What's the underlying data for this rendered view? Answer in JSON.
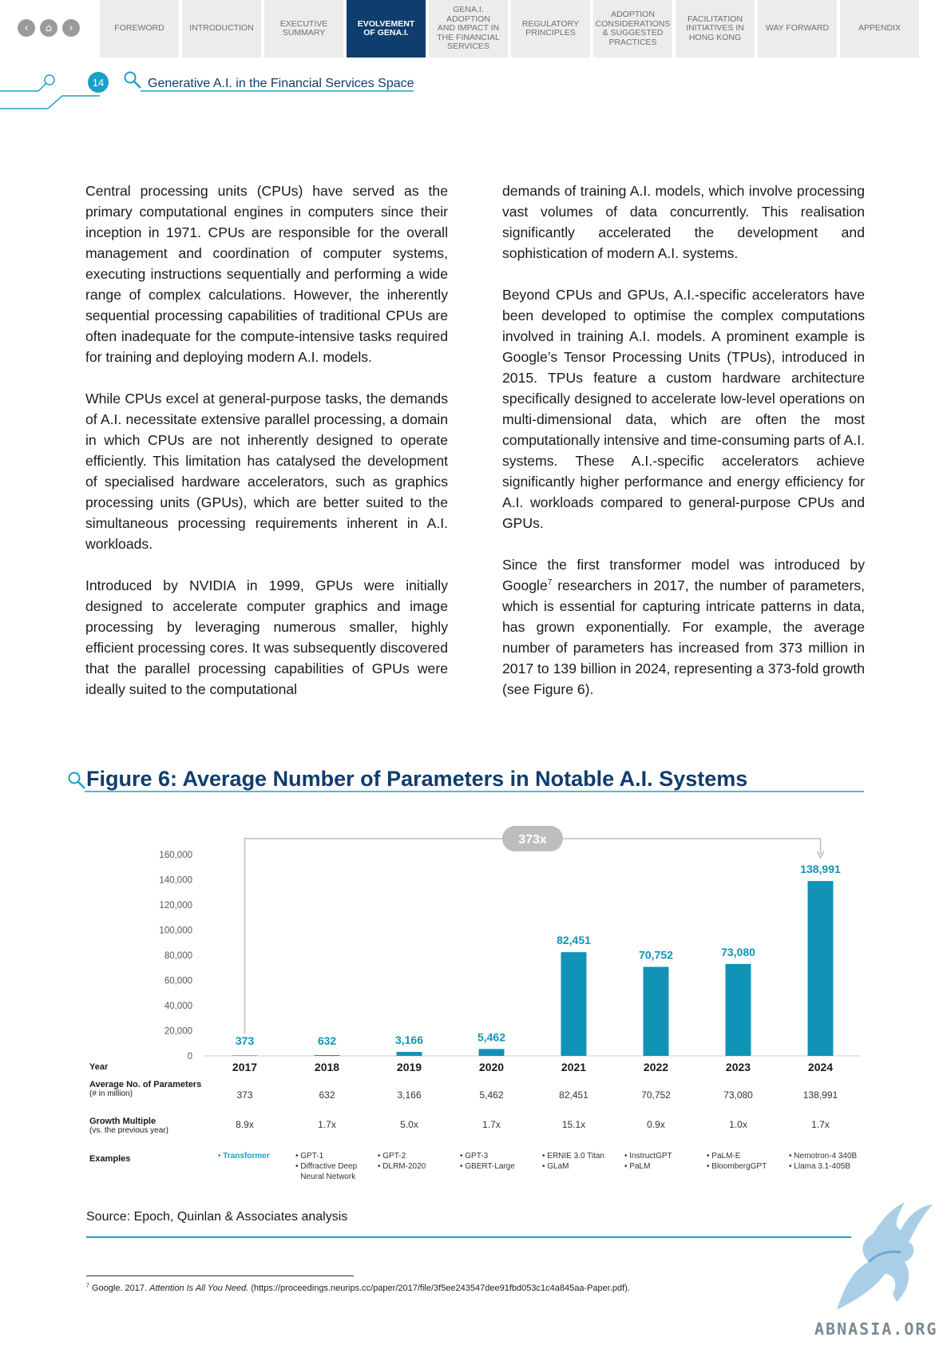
{
  "nav": {
    "circles": [
      "‹",
      "⌂",
      "›"
    ],
    "tabs": [
      {
        "label": "FOREWORD",
        "active": false
      },
      {
        "label": "INTRODUCTION",
        "active": false
      },
      {
        "label": "EXECUTIVE\nSUMMARY",
        "active": false
      },
      {
        "label": "EVOLVEMENT\nOF GenA.I.",
        "active": true
      },
      {
        "label": "GenA.I.\nADOPTION\nAND IMPACT IN\nTHE FINANCIAL\nSERVICES",
        "active": false
      },
      {
        "label": "REGULATORY\nPRINCIPLES",
        "active": false
      },
      {
        "label": "ADOPTION\nCONSIDERATIONS\n& SUGGESTED\nPRACTICES",
        "active": false
      },
      {
        "label": "FACILITATION\nINITIATIVES IN\nHONG KONG",
        "active": false
      },
      {
        "label": "WAY FORWARD",
        "active": false
      },
      {
        "label": "APPENDIX",
        "active": false
      }
    ]
  },
  "header": {
    "page_number": "14",
    "title": "Generative A.I. in the Financial Services Space"
  },
  "body": {
    "left": [
      "Central processing units (CPUs) have served as the primary computational engines in computers since their inception in 1971.  CPUs are responsible for the overall management and coordination of computer systems, executing instructions sequentially and performing a wide range of complex calculations. However, the inherently sequential processing capabilities of traditional CPUs are often inadequate for the compute-intensive tasks required for training and deploying modern A.I. models.",
      "While CPUs excel at general-purpose tasks, the demands of A.I. necessitate extensive parallel processing, a domain in which CPUs are not inherently designed to operate efficiently.  This limitation has catalysed the development of specialised hardware accelerators, such as graphics processing units (GPUs), which are better suited to the simultaneous processing requirements inherent in A.I. workloads.",
      "Introduced by NVIDIA in 1999, GPUs were initially designed to accelerate computer graphics and image processing by leveraging numerous smaller, highly efficient processing cores.  It was subsequently discovered that the parallel processing capabilities of GPUs were ideally suited to the computational"
    ],
    "right": [
      "demands of training A.I. models, which involve processing vast volumes of data concurrently.  This realisation significantly accelerated the development and sophistication of modern A.I. systems.",
      "Beyond CPUs and GPUs, A.I.-specific accelerators have been developed to optimise the complex computations involved in training A.I. models.  A prominent example is Google’s Tensor Processing Units (TPUs), introduced in 2015.  TPUs feature a custom hardware architecture specifically designed to accelerate low-level operations on multi-dimensional data, which are often the most computationally intensive and time-consuming parts of A.I. systems. These A.I.-specific accelerators achieve significantly higher performance and energy efficiency for A.I. workloads compared to general-purpose CPUs and GPUs."
    ],
    "right_last_before": "Since the first transformer model was introduced by Google",
    "right_last_sup": "7",
    "right_last_after": " researchers in 2017, the number of parameters, which is essential for capturing intricate patterns in data, has grown exponentially.  For example, the average number of parameters has increased from 373 million in 2017 to 139 billion in 2024, representing a 373-fold growth (see Figure 6)."
  },
  "figure": {
    "title": "Figure 6: Average Number of Parameters in Notable A.I. Systems",
    "source": "Source: Epoch, Quinlan & Associates analysis"
  },
  "chart_data": {
    "type": "bar",
    "title": "Figure 6: Average Number of Parameters in Notable A.I. Systems",
    "categories": [
      "2017",
      "2018",
      "2019",
      "2020",
      "2021",
      "2022",
      "2023",
      "2024"
    ],
    "values": [
      373,
      632,
      3166,
      5462,
      82451,
      70752,
      73080,
      138991
    ],
    "value_labels": [
      "373",
      "632",
      "3,166",
      "5,462",
      "82,451",
      "70,752",
      "73,080",
      "138,991"
    ],
    "ylim": [
      0,
      160000
    ],
    "yticks": [
      0,
      20000,
      40000,
      60000,
      80000,
      100000,
      120000,
      140000,
      160000
    ],
    "ytick_labels": [
      "0",
      "20,000",
      "40,000",
      "60,000",
      "80,000",
      "100,000",
      "120,000",
      "140,000",
      "160,000"
    ],
    "annotation": "373x",
    "bar_color": "#1193b8",
    "label_color": "#1193b8",
    "grid": false
  },
  "table": {
    "row_labels": {
      "year": "Year",
      "params": "Average No. of Parameters",
      "params_sub": "(# in million)",
      "growth": "Growth Multiple",
      "growth_sub": "(vs. the previous year)",
      "examples": "Examples"
    },
    "params": [
      "373",
      "632",
      "3,166",
      "5,462",
      "82,451",
      "70,752",
      "73,080",
      "138,991"
    ],
    "growth": [
      "8.9x",
      "1.7x",
      "5.0x",
      "1.7x",
      "15.1x",
      "0.9x",
      "1.0x",
      "1.7x"
    ],
    "examples": [
      [
        "Transformer"
      ],
      [
        "GPT-1",
        "Diffractive Deep\nNeural Network"
      ],
      [
        "GPT-2",
        "DLRM-2020"
      ],
      [
        "GPT-3",
        "GBERT-Large"
      ],
      [
        "ERNIE 3.0 Titan",
        "GLaM"
      ],
      [
        "InstructGPT",
        "PaLM"
      ],
      [
        "PaLM-E",
        "BloombergGPT"
      ],
      [
        "Nemotron-4 340B",
        "Llama 3.1-405B"
      ]
    ]
  },
  "footnote": {
    "marker": "7",
    "before": "  Google. 2017. ",
    "italic": "Attention Is All You Need.",
    "after": " (https://proceedings.neurips.cc/paper/2017/file/3f5ee243547dee91fbd053c1c4a845aa-Paper.pdf)."
  },
  "watermark": "ABNASIA.ORG"
}
